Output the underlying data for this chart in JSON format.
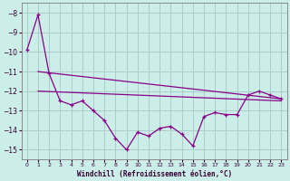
{
  "xlabel": "Windchill (Refroidissement éolien,°C)",
  "background_color": "#cceee8",
  "grid_color": "#aacccc",
  "line_color": "#880088",
  "x_values": [
    0,
    1,
    2,
    3,
    4,
    5,
    6,
    7,
    8,
    9,
    10,
    11,
    12,
    13,
    14,
    15,
    16,
    17,
    18,
    19,
    20,
    21,
    22,
    23
  ],
  "series1": [
    -9.9,
    -8.1,
    -11.1,
    -12.5,
    -12.7,
    -12.5,
    -13.0,
    -13.5,
    -14.4,
    -15.0,
    -14.1,
    -14.3,
    -13.9,
    -13.8,
    -14.2,
    -14.8,
    -13.3,
    -13.1,
    -13.2,
    -13.2,
    -12.2,
    -12.0,
    -12.2,
    -12.4
  ],
  "series2_x": [
    1,
    23
  ],
  "series2_y": [
    -11.0,
    -12.4
  ],
  "series3_x": [
    1,
    23
  ],
  "series3_y": [
    -12.0,
    -12.5
  ],
  "ylim": [
    -15.5,
    -7.5
  ],
  "yticks": [
    -15,
    -14,
    -13,
    -12,
    -11,
    -10,
    -9,
    -8
  ],
  "xlim": [
    -0.5,
    23.5
  ],
  "xticks": [
    0,
    1,
    2,
    3,
    4,
    5,
    6,
    7,
    8,
    9,
    10,
    11,
    12,
    13,
    14,
    15,
    16,
    17,
    18,
    19,
    20,
    21,
    22,
    23
  ]
}
